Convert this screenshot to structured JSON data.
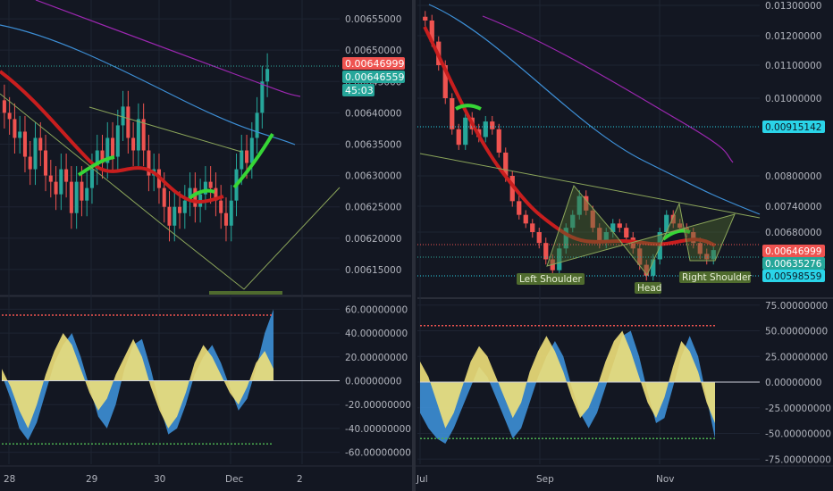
{
  "theme": {
    "background": "#131722",
    "grid": "#1e2432",
    "axis_text": "#b2b5be",
    "divider": "#2a2e39",
    "bull": "#26a69a",
    "bull_alt": "#2ec4a8",
    "bear": "#ef5350",
    "ema_red": "#c81e1e",
    "ema_green": "#36d636",
    "ma_blue": "#3d8fd6",
    "ma_purple": "#9c27b0",
    "osc_yellow": "#f0e07a",
    "osc_blue": "#3d8fd6",
    "level_red": "#ef5350",
    "level_green": "#4caf50",
    "pattern_line": "#8ba55a",
    "pattern_fill": "#4f6b2e",
    "label_bg": "#4f6b2e"
  },
  "chart_data": [
    {
      "id": "left-price",
      "type": "candlestick",
      "title": "",
      "x_ticks": [
        "28",
        "29",
        "30",
        "Dec",
        "2"
      ],
      "y_ticks": [
        "0.00615000",
        "0.00620000",
        "0.00625000",
        "0.00630000",
        "0.00635000",
        "0.00640000",
        "0.00645000",
        "0.00650000",
        "0.00655000"
      ],
      "ylim": [
        0.00611,
        0.00658
      ],
      "price_tags": [
        {
          "value": "0.00646999",
          "color": "#ef5350"
        },
        {
          "value": "0.00646559",
          "color": "#26a69a"
        },
        {
          "value": "45:03",
          "color": "#26a69a"
        }
      ],
      "close_series": [
        0.0064,
        0.00639,
        0.00636,
        0.00637,
        0.00633,
        0.00631,
        0.00636,
        0.00634,
        0.0063,
        0.00629,
        0.00627,
        0.00631,
        0.00629,
        0.00624,
        0.00629,
        0.00626,
        0.00628,
        0.00631,
        0.00634,
        0.00632,
        0.00636,
        0.00633,
        0.00638,
        0.00641,
        0.00636,
        0.00634,
        0.00639,
        0.00634,
        0.0063,
        0.00631,
        0.00628,
        0.00625,
        0.00622,
        0.00625,
        0.00624,
        0.00626,
        0.00628,
        0.00625,
        0.00627,
        0.00629,
        0.00628,
        0.00626,
        0.00624,
        0.00622,
        0.00626,
        0.00631,
        0.00634,
        0.00632,
        0.00636,
        0.0064,
        0.00645,
        0.00647
      ],
      "pattern": "falling-wedge breakout (V projection)"
    },
    {
      "id": "left-oscillator",
      "type": "area",
      "y_ticks": [
        "60.00000000",
        "40.00000000",
        "20.00000000",
        "0.00000000",
        "-20.00000000",
        "-40.00000000",
        "-60.00000000"
      ],
      "ylim": [
        -70,
        70
      ],
      "upper_level": 55,
      "lower_level": -53,
      "yellow": [
        10,
        -5,
        -25,
        -40,
        -20,
        5,
        25,
        40,
        30,
        10,
        -10,
        -25,
        -15,
        5,
        20,
        35,
        20,
        -5,
        -25,
        -40,
        -30,
        -10,
        15,
        30,
        20,
        5,
        -10,
        -20,
        -5,
        15,
        25,
        10
      ],
      "blue": [
        5,
        -15,
        -40,
        -50,
        -35,
        -10,
        15,
        30,
        40,
        20,
        -5,
        -30,
        -40,
        -20,
        10,
        30,
        35,
        10,
        -20,
        -45,
        -40,
        -20,
        5,
        20,
        30,
        15,
        -5,
        -25,
        -15,
        10,
        40,
        60
      ]
    },
    {
      "id": "right-price",
      "type": "candlestick",
      "title": "",
      "x_ticks": [
        "Jul",
        "Sep",
        "Nov"
      ],
      "y_ticks": [
        "0.00680000",
        "0.00740000",
        "0.00800000",
        "0.01000000",
        "0.01100000",
        "0.01200000",
        "0.01300000"
      ],
      "ylim": [
        0.0057,
        0.0132
      ],
      "price_tags": [
        {
          "value": "0.00915142",
          "color": "#2ad4e8"
        },
        {
          "value": "0.00646999",
          "color": "#ef5350"
        },
        {
          "value": "0.00635276",
          "color": "#26a69a"
        },
        {
          "value": "0.00598559",
          "color": "#2ad4e8"
        }
      ],
      "close_series": [
        0.0125,
        0.0118,
        0.011,
        0.01,
        0.0092,
        0.0088,
        0.0095,
        0.0092,
        0.009,
        0.0094,
        0.0092,
        0.0086,
        0.008,
        0.0075,
        0.0072,
        0.007,
        0.0068,
        0.0066,
        0.0063,
        0.0061,
        0.0065,
        0.0069,
        0.0072,
        0.0076,
        0.0073,
        0.0069,
        0.0066,
        0.0068,
        0.007,
        0.0069,
        0.0067,
        0.0065,
        0.0062,
        0.006,
        0.0063,
        0.0068,
        0.0072,
        0.007,
        0.0069,
        0.0068,
        0.0066,
        0.0064,
        0.0063,
        0.00647
      ],
      "pattern_labels": [
        "Left Shoulder",
        "Head",
        "Right Shoulder"
      ]
    },
    {
      "id": "right-oscillator",
      "type": "area",
      "y_ticks": [
        "75.00000000",
        "50.00000000",
        "25.00000000",
        "0.00000000",
        "-25.00000000",
        "-50.00000000",
        "-75.00000000"
      ],
      "ylim": [
        -80,
        80
      ],
      "upper_level": 55,
      "lower_level": -55,
      "yellow": [
        20,
        5,
        -20,
        -45,
        -30,
        -5,
        20,
        35,
        25,
        5,
        -15,
        -35,
        -20,
        10,
        30,
        45,
        30,
        10,
        -15,
        -35,
        -25,
        -5,
        20,
        40,
        50,
        30,
        5,
        -20,
        -35,
        -15,
        15,
        40,
        30,
        10,
        -20,
        -40
      ],
      "blue": [
        -30,
        -45,
        -55,
        -60,
        -45,
        -25,
        -5,
        15,
        5,
        -15,
        -35,
        -55,
        -45,
        -20,
        5,
        25,
        40,
        25,
        -5,
        -30,
        -45,
        -30,
        -5,
        20,
        45,
        50,
        25,
        -10,
        -40,
        -35,
        -5,
        25,
        45,
        25,
        -15,
        -55
      ]
    }
  ]
}
